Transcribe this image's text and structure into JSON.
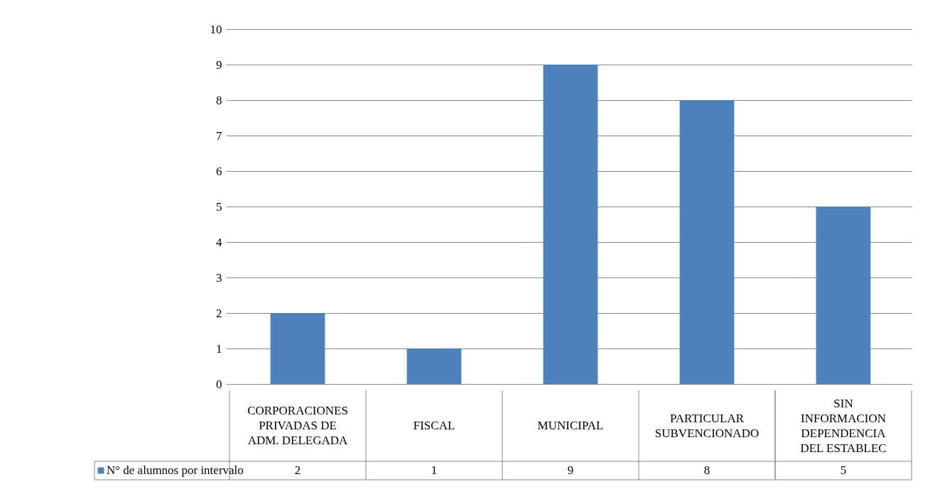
{
  "chart_data": {
    "type": "bar",
    "categories": [
      "CORPORACIONES PRIVADAS DE ADM. DELEGADA",
      "FISCAL",
      "MUNICIPAL",
      "PARTICULAR SUBVENCIONADO",
      "SIN INFORMACION DEPENDENCIA DEL ESTABLEC"
    ],
    "series": [
      {
        "name": "N° de alumnos por intervalo",
        "color": "#4f81bd",
        "values": [
          2,
          1,
          9,
          8,
          5
        ]
      }
    ],
    "ylim": [
      0,
      10
    ],
    "yticks": [
      0,
      1,
      2,
      3,
      4,
      5,
      6,
      7,
      8,
      9,
      10
    ],
    "grid": "y",
    "data_labels": true,
    "legend": "bottom left"
  }
}
